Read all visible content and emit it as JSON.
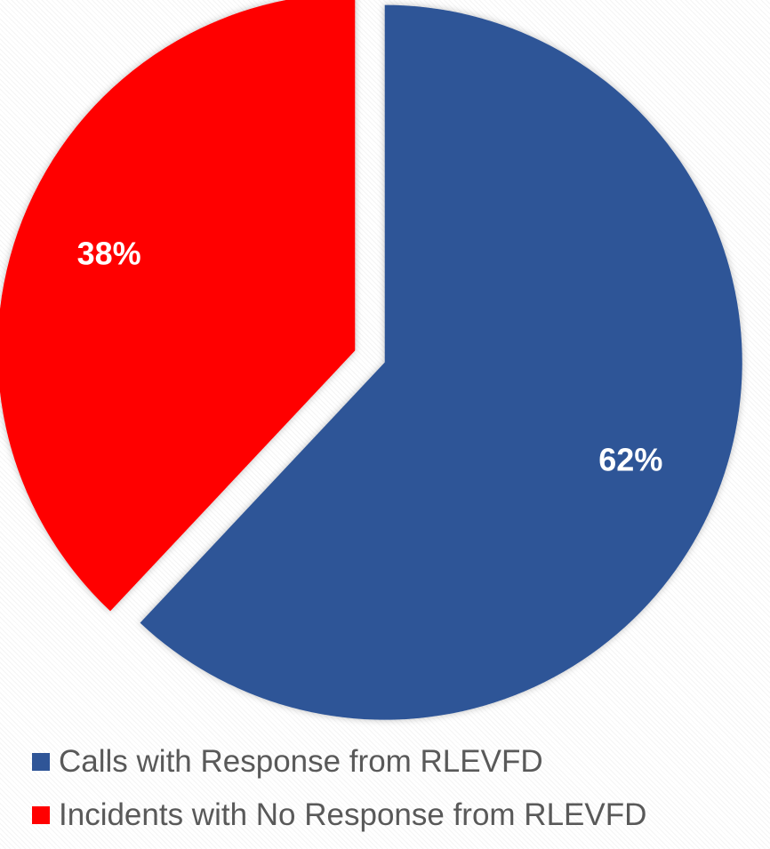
{
  "chart_data": {
    "type": "pie",
    "title": "",
    "legend_position": "bottom",
    "slices": [
      {
        "label": "Calls with Response from RLEVFD",
        "value": 62,
        "display": "62%",
        "color": "#2F5597"
      },
      {
        "label": "Incidents with No Response from RLEVFD",
        "value": 38,
        "display": "38%",
        "color": "#FF0000"
      }
    ]
  }
}
